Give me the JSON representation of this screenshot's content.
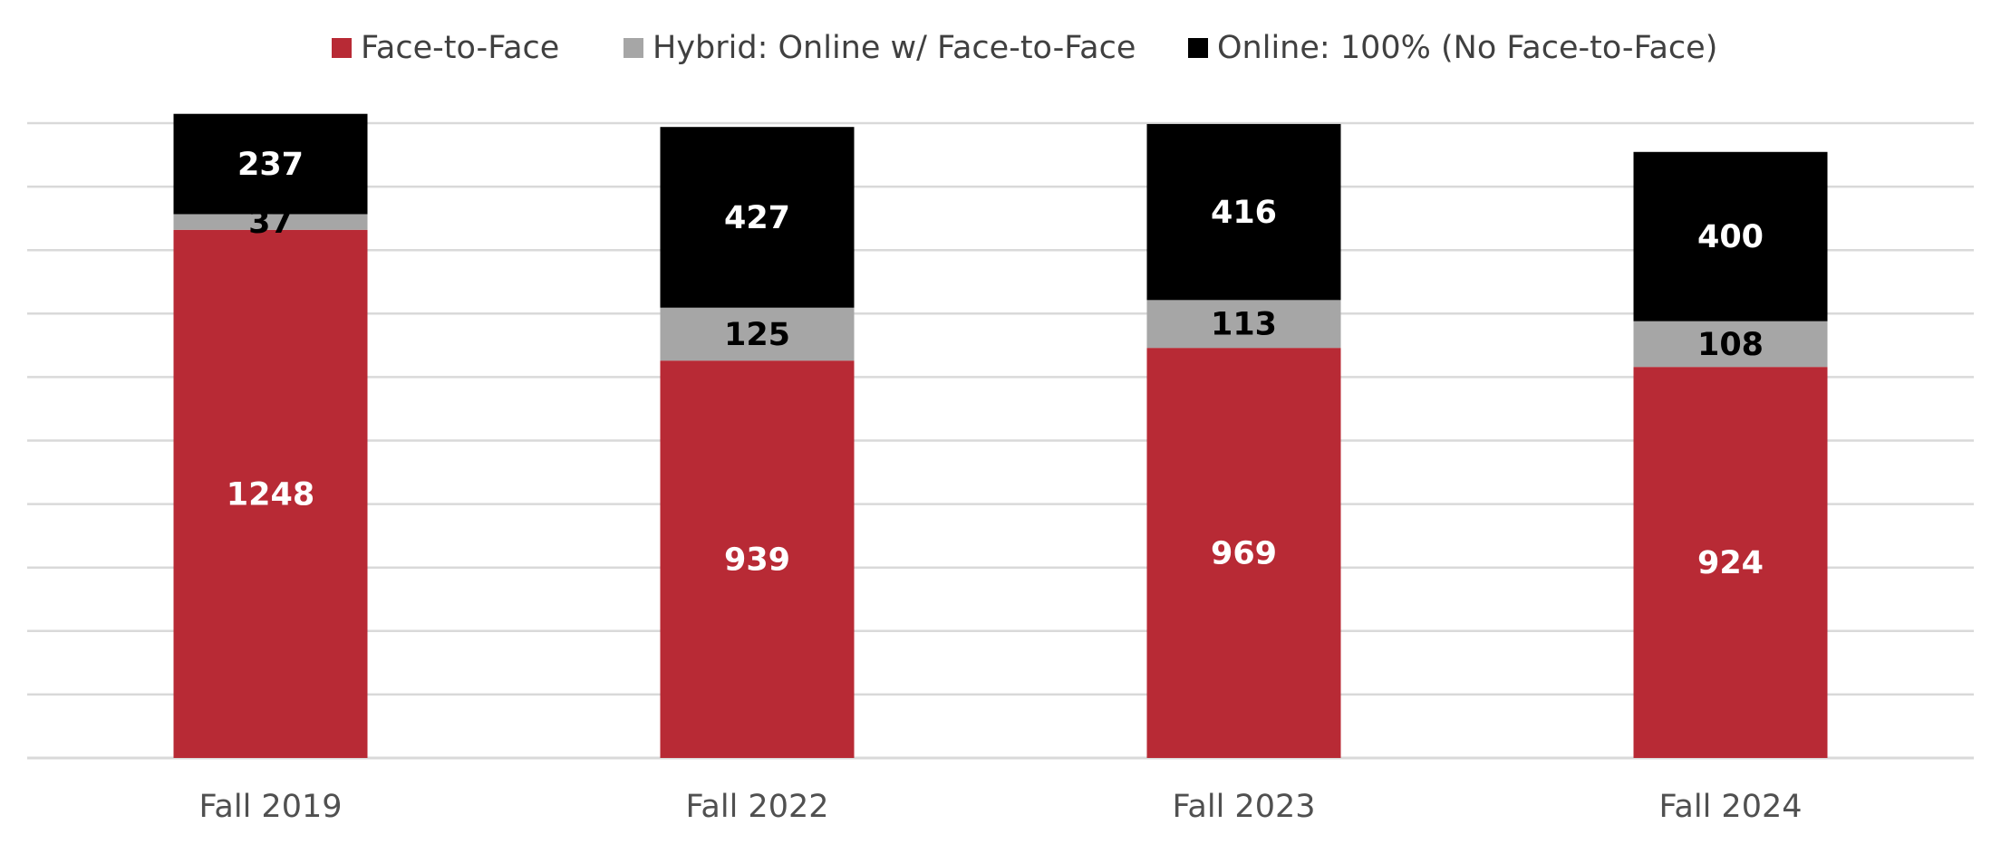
{
  "chart_data": {
    "type": "bar",
    "stacked": true,
    "categories": [
      "Fall 2019",
      "Fall 2022",
      "Fall 2023",
      "Fall 2024"
    ],
    "series": [
      {
        "name": "Face-to-Face",
        "color": "#b82a35",
        "label_color": "#ffffff",
        "values": [
          1248,
          939,
          969,
          924
        ]
      },
      {
        "name": "Hybrid: Online w/ Face-to-Face",
        "color": "#a6a6a6",
        "label_color": "#000000",
        "values": [
          37,
          125,
          113,
          108
        ]
      },
      {
        "name": "Online: 100% (No Face-to-Face)",
        "color": "#000000",
        "label_color": "#ffffff",
        "values": [
          237,
          427,
          416,
          400
        ]
      }
    ],
    "ylim": [
      0,
      1500
    ],
    "grid": true,
    "legend": "top",
    "title": "",
    "xlabel": "",
    "ylabel": ""
  }
}
